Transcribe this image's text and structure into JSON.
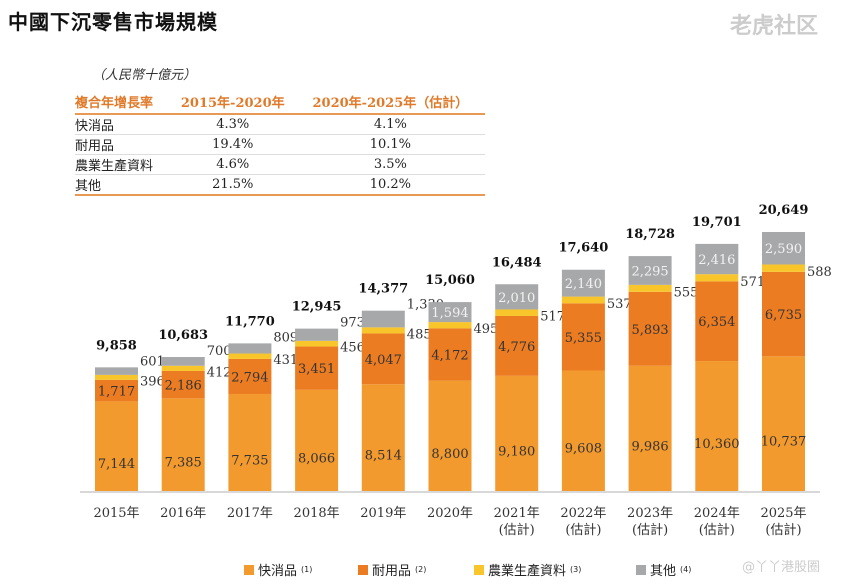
{
  "title": "中國下沉零售市場規模",
  "unit": "（人民幣十億元）",
  "cagr_table": {
    "headers": [
      "複合年增長率",
      "2015年-2020年",
      "2020年-2025年（估計）"
    ],
    "rows": [
      [
        "快消品",
        "4.3%",
        "4.1%"
      ],
      [
        "耐用品",
        "19.4%",
        "10.1%"
      ],
      [
        "農業生產資料",
        "4.6%",
        "3.5%"
      ],
      [
        "其他",
        "21.5%",
        "10.2%"
      ]
    ]
  },
  "chart_data": {
    "type": "bar",
    "stacked": true,
    "categories": [
      "2015年",
      "2016年",
      "2017年",
      "2018年",
      "2019年",
      "2020年",
      "2021年\n(估計)",
      "2022年\n(估計)",
      "2023年\n(估計)",
      "2024年\n(估計)",
      "2025年\n(估計)"
    ],
    "series": [
      {
        "name": "快消品",
        "note": "(1)",
        "color": "#f39a2e",
        "values": [
          7144,
          7385,
          7735,
          8066,
          8514,
          8800,
          9180,
          9608,
          9986,
          10360,
          10737
        ]
      },
      {
        "name": "耐用品",
        "note": "(2)",
        "color": "#ec7c22",
        "values": [
          1717,
          2186,
          2794,
          3451,
          4047,
          4172,
          4776,
          5355,
          5893,
          6354,
          6735
        ]
      },
      {
        "name": "農業生產資料",
        "note": "(3)",
        "color": "#f8c52b",
        "values": [
          396,
          412,
          431,
          456,
          485,
          495,
          517,
          537,
          555,
          571,
          588
        ]
      },
      {
        "name": "其他",
        "note": "(4)",
        "color": "#a7a8aa",
        "values": [
          601,
          700,
          809,
          973,
          1330,
          1594,
          2010,
          2140,
          2295,
          2416,
          2590
        ]
      }
    ],
    "totals": [
      "9,858",
      "10,683",
      "11,770",
      "12,945",
      "14,377",
      "15,060",
      "16,484",
      "17,640",
      "18,728",
      "19,701",
      "20,649"
    ],
    "legend_position": "bottom",
    "grid": false
  },
  "watermarks": [
    "老虎社区",
    "@丫丫港股圈"
  ]
}
